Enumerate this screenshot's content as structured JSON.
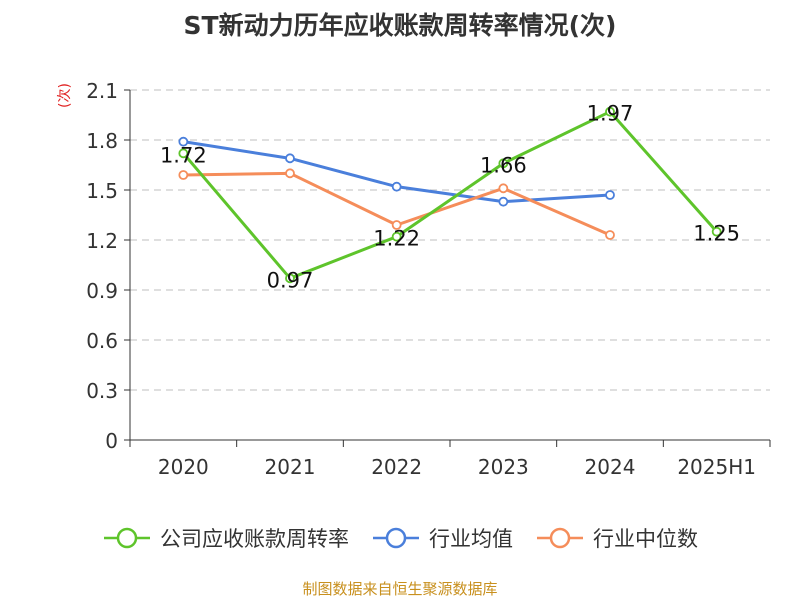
{
  "chart_data": {
    "type": "line",
    "title": "ST新动力历年应收账款周转率情况(次)",
    "ylabel": "(次)",
    "xlabel": "",
    "categories": [
      "2020",
      "2021",
      "2022",
      "2023",
      "2024",
      "2025H1"
    ],
    "ylim": [
      0,
      2.1
    ],
    "yticks": [
      "0",
      "0.3",
      "0.6",
      "0.9",
      "1.2",
      "1.5",
      "1.8",
      "2.1"
    ],
    "grid": true,
    "legend_position": "bottom",
    "series": [
      {
        "name": "公司应收账款周转率",
        "color": "#5ec42b",
        "values": [
          1.72,
          0.97,
          1.22,
          1.66,
          1.97,
          1.25
        ],
        "labels": [
          "1.72",
          "0.97",
          "1.22",
          "1.66",
          "1.97",
          "1.25"
        ]
      },
      {
        "name": "行业均值",
        "color": "#4a7fdb",
        "values": [
          1.79,
          1.69,
          1.52,
          1.43,
          1.47,
          null
        ]
      },
      {
        "name": "行业中位数",
        "color": "#f58d5a",
        "values": [
          1.59,
          1.6,
          1.29,
          1.51,
          1.23,
          null
        ]
      }
    ]
  },
  "source": "制图数据来自恒生聚源数据库"
}
